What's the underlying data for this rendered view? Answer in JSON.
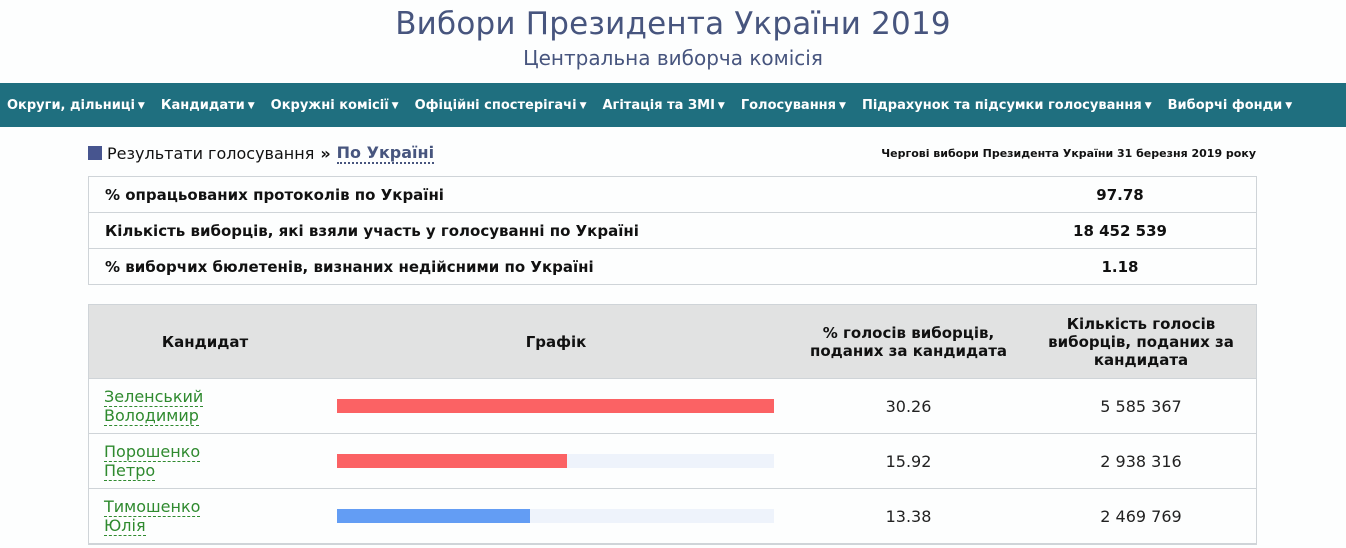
{
  "header": {
    "title": "Вибори Президента України 2019",
    "subtitle": "Центральна виборча комісія"
  },
  "nav": {
    "items": [
      {
        "label": "Округи, дільниці"
      },
      {
        "label": "Кандидати"
      },
      {
        "label": "Окружні комісії"
      },
      {
        "label": "Офіційні спостерігачі"
      },
      {
        "label": "Агітація та ЗМІ"
      },
      {
        "label": "Голосування"
      },
      {
        "label": "Підрахунок та підсумки голосування"
      },
      {
        "label": "Виборчі фонди"
      }
    ],
    "caret": "▼"
  },
  "breadcrumb": {
    "section": "Результати голосування",
    "separator": "»",
    "current": "По Україні",
    "election": "Чергові вибори Президента України 31 березня 2019 року"
  },
  "summary": [
    {
      "label": "% опрацьованих протоколів по Україні",
      "value": "97.78"
    },
    {
      "label": "Кількість виборців, які взяли участь у голосуванні по Україні",
      "value": "18 452 539"
    },
    {
      "label": "% виборчих бюлетенів, визнаних недійсними по Україні",
      "value": "1.18"
    }
  ],
  "results": {
    "headers": {
      "candidate": "Кандидат",
      "chart": "Графік",
      "percent": "% голосів виборців, поданих за кандидата",
      "votes": "Кількість голосів виборців, поданих за кандидата"
    },
    "rows": [
      {
        "name_line1": "Зеленський",
        "name_line2": "Володимир",
        "percent": "30.26",
        "votes": "5 585 367",
        "bar_fraction": 1.0,
        "bar_color": "#fb6264"
      },
      {
        "name_line1": "Порошенко",
        "name_line2": "Петро",
        "percent": "15.92",
        "votes": "2 938 316",
        "bar_fraction": 0.526,
        "bar_color": "#fb6264"
      },
      {
        "name_line1": "Тимошенко",
        "name_line2": "Юлія",
        "percent": "13.38",
        "votes": "2 469 769",
        "bar_fraction": 0.442,
        "bar_color": "#639df4"
      }
    ]
  },
  "colors": {
    "navbar": "#1f6f7f",
    "title": "#47557e",
    "candidate_link": "#2f8a2f",
    "bar_red": "#fb6264",
    "bar_blue": "#639df4",
    "bar_track": "#eef3fb"
  }
}
